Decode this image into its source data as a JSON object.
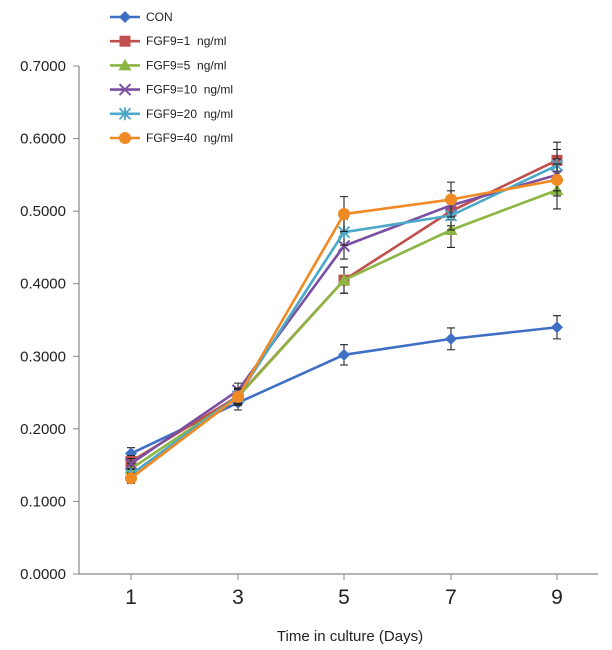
{
  "chart_data": {
    "type": "line",
    "x": [
      1,
      3,
      5,
      7,
      9
    ],
    "xlabel": "Time in culture (Days)",
    "ylabel": "",
    "ylim": [
      0,
      0.7
    ],
    "yticks": [
      0.0,
      0.1,
      0.2,
      0.3,
      0.4,
      0.5,
      0.6,
      0.7
    ],
    "ytick_labels": [
      "0.0000",
      "0.1000",
      "0.2000",
      "0.3000",
      "0.4000",
      "0.5000",
      "0.6000",
      "0.7000"
    ],
    "xtick_labels": [
      "1",
      "3",
      "5",
      "7",
      "9"
    ],
    "legend_position": "top-left",
    "grid": false,
    "error_bars": true,
    "series": [
      {
        "name": "CON",
        "color": "#3e6fc4",
        "marker": "diamond",
        "values": [
          0.166,
          0.236,
          0.302,
          0.324,
          0.34
        ],
        "errors": [
          0.008,
          0.01,
          0.014,
          0.015,
          0.016
        ]
      },
      {
        "name": "FGF9=1  ng/ml",
        "color": "#c0504d",
        "marker": "square",
        "values": [
          0.155,
          0.245,
          0.405,
          0.5,
          0.57
        ],
        "errors": [
          0.008,
          0.01,
          0.018,
          0.02,
          0.025
        ]
      },
      {
        "name": "FGF9=5  ng/ml",
        "color": "#8db543",
        "marker": "triangle",
        "values": [
          0.145,
          0.244,
          0.405,
          0.474,
          0.529
        ],
        "errors": [
          0.007,
          0.01,
          0.018,
          0.024,
          0.026
        ]
      },
      {
        "name": "FGF9=10  ng/ml",
        "color": "#7a4fa3",
        "marker": "x",
        "values": [
          0.152,
          0.253,
          0.452,
          0.508,
          0.55
        ],
        "errors": [
          0.007,
          0.01,
          0.018,
          0.02,
          0.022
        ]
      },
      {
        "name": "FGF9=20  ng/ml",
        "color": "#4ba8c8",
        "marker": "asterisk",
        "values": [
          0.137,
          0.245,
          0.471,
          0.494,
          0.563
        ],
        "errors": [
          0.007,
          0.01,
          0.018,
          0.02,
          0.022
        ]
      },
      {
        "name": "FGF9=40  ng/ml",
        "color": "#f08a24",
        "marker": "circle",
        "values": [
          0.132,
          0.244,
          0.496,
          0.516,
          0.543
        ],
        "errors": [
          0.007,
          0.012,
          0.024,
          0.024,
          0.022
        ]
      }
    ]
  }
}
